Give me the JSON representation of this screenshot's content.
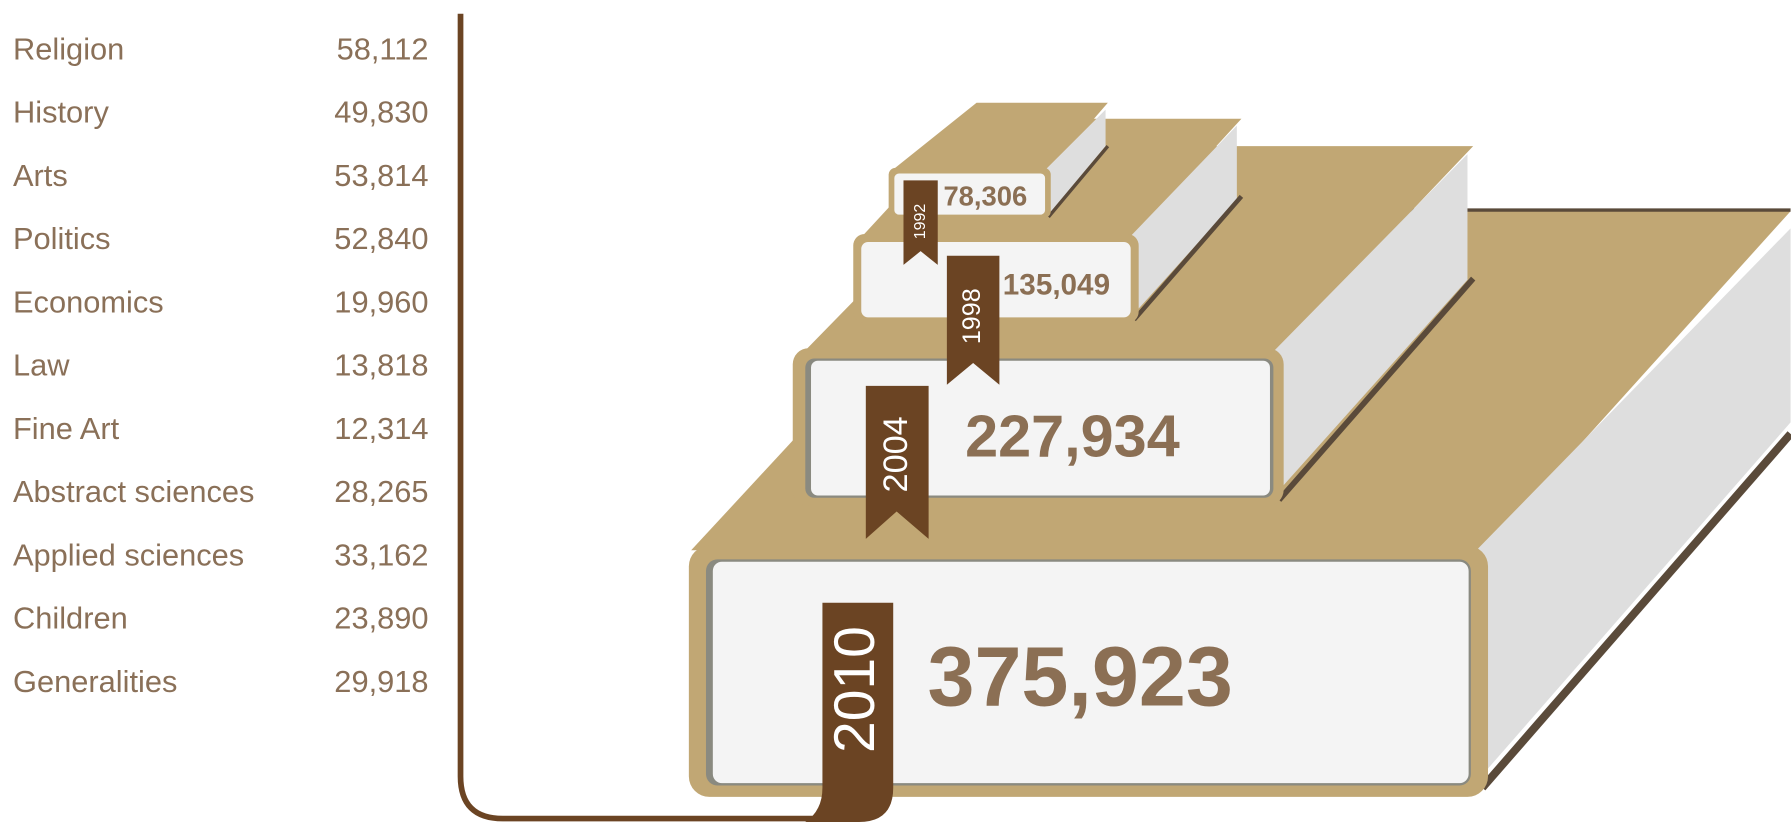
{
  "list": [
    {
      "name": "Religion",
      "value": "58,112"
    },
    {
      "name": "History",
      "value": "49,830"
    },
    {
      "name": "Arts",
      "value": "53,814"
    },
    {
      "name": "Politics",
      "value": "52,840"
    },
    {
      "name": "Economics",
      "value": "19,960"
    },
    {
      "name": "Law",
      "value": "13,818"
    },
    {
      "name": "Fine Art",
      "value": "12,314"
    },
    {
      "name": "Abstract sciences",
      "value": "28,265"
    },
    {
      "name": "Applied sciences",
      "value": "33,162"
    },
    {
      "name": "Children",
      "value": "23,890"
    },
    {
      "name": "Generalities",
      "value": "29,918"
    }
  ],
  "books": [
    {
      "year": "1992",
      "total": "78,306"
    },
    {
      "year": "1998",
      "total": "135,049"
    },
    {
      "year": "2004",
      "total": "227,934"
    },
    {
      "year": "2010",
      "total": "375,923"
    }
  ]
}
